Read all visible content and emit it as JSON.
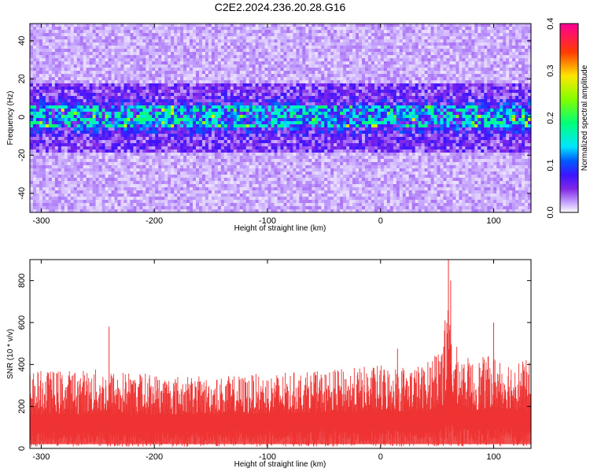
{
  "figure": {
    "title": "C2E2.2024.236.20.28.G16"
  },
  "chart_data": [
    {
      "type": "heatmap",
      "xlabel": "Height of straight line (km)",
      "ylabel": "Frequency (Hz)",
      "xlim": [
        -310,
        133
      ],
      "ylim": [
        -50,
        49
      ],
      "xticks": [
        -300,
        -200,
        -100,
        0,
        100
      ],
      "yticks": [
        -40,
        -20,
        0,
        20,
        40
      ],
      "colorbar": {
        "label": "Normalized spectral amplitude",
        "range": [
          0.0,
          0.4
        ],
        "ticks": [
          0.0,
          0.1,
          0.2,
          0.3,
          0.4
        ],
        "colormap": "rainbow (white-violet-blue-cyan-green-yellow-red-magenta)"
      },
      "description_of_values": {
        "band_center_hz": 0,
        "band_core_halfwidth_hz": 6,
        "band_core_amplitude": 0.12,
        "band_outer_halfwidth_hz": 18,
        "band_outer_amplitude": 0.05,
        "background_amplitude": 0.02
      },
      "grid": false
    },
    {
      "type": "line",
      "xlabel": "Height of straight line (km)",
      "ylabel": "SNR (10 * v/v)",
      "xlim": [
        -310,
        133
      ],
      "ylim": [
        0,
        900
      ],
      "xticks": [
        -300,
        -200,
        -100,
        0,
        100
      ],
      "yticks": [
        0,
        200,
        400,
        600,
        800
      ],
      "color": "#ee3333",
      "series_profile": {
        "x": [
          -310,
          -250,
          -200,
          -150,
          -100,
          -50,
          0,
          40,
          55,
          60,
          65,
          80,
          100,
          133
        ],
        "baseline": [
          160,
          165,
          160,
          160,
          165,
          170,
          175,
          175,
          200,
          260,
          220,
          180,
          190,
          180
        ],
        "typical_peak": [
          370,
          380,
          360,
          340,
          360,
          370,
          400,
          400,
          560,
          680,
          500,
          420,
          450,
          420
        ]
      },
      "notable_spikes": [
        {
          "x": -240,
          "y": 580
        },
        {
          "x": 15,
          "y": 475
        },
        {
          "x": 57,
          "y": 610
        },
        {
          "x": 60,
          "y": 900
        },
        {
          "x": 62,
          "y": 800
        },
        {
          "x": 100,
          "y": 600
        }
      ],
      "grid": false
    }
  ]
}
